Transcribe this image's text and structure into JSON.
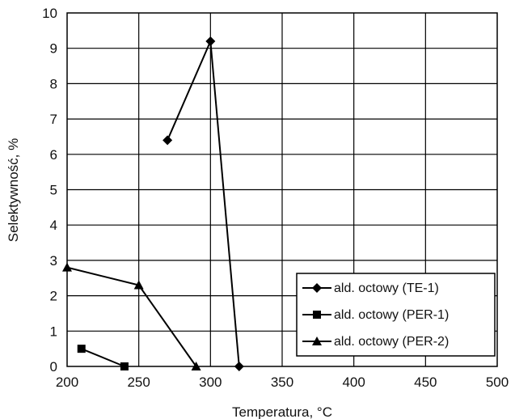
{
  "chart_data": {
    "type": "line",
    "xlabel": "Temperatura, °C",
    "ylabel": "Selektywność, %",
    "xlim": [
      200,
      500
    ],
    "ylim": [
      0,
      10
    ],
    "xticks": [
      200,
      250,
      300,
      350,
      400,
      450,
      500
    ],
    "yticks": [
      0,
      1,
      2,
      3,
      4,
      5,
      6,
      7,
      8,
      9,
      10
    ],
    "grid": true,
    "legend_position": "bottom-right",
    "series": [
      {
        "name": "ald. octowy (TE-1)",
        "marker": "diamond",
        "x": [
          270,
          300,
          320
        ],
        "y": [
          6.4,
          9.2,
          0
        ]
      },
      {
        "name": "ald. octowy (PER-1)",
        "marker": "square",
        "x": [
          210,
          240
        ],
        "y": [
          0.5,
          0
        ]
      },
      {
        "name": "ald. octowy (PER-2)",
        "marker": "triangle",
        "x": [
          200,
          250,
          290
        ],
        "y": [
          2.8,
          2.3,
          0
        ]
      }
    ]
  }
}
